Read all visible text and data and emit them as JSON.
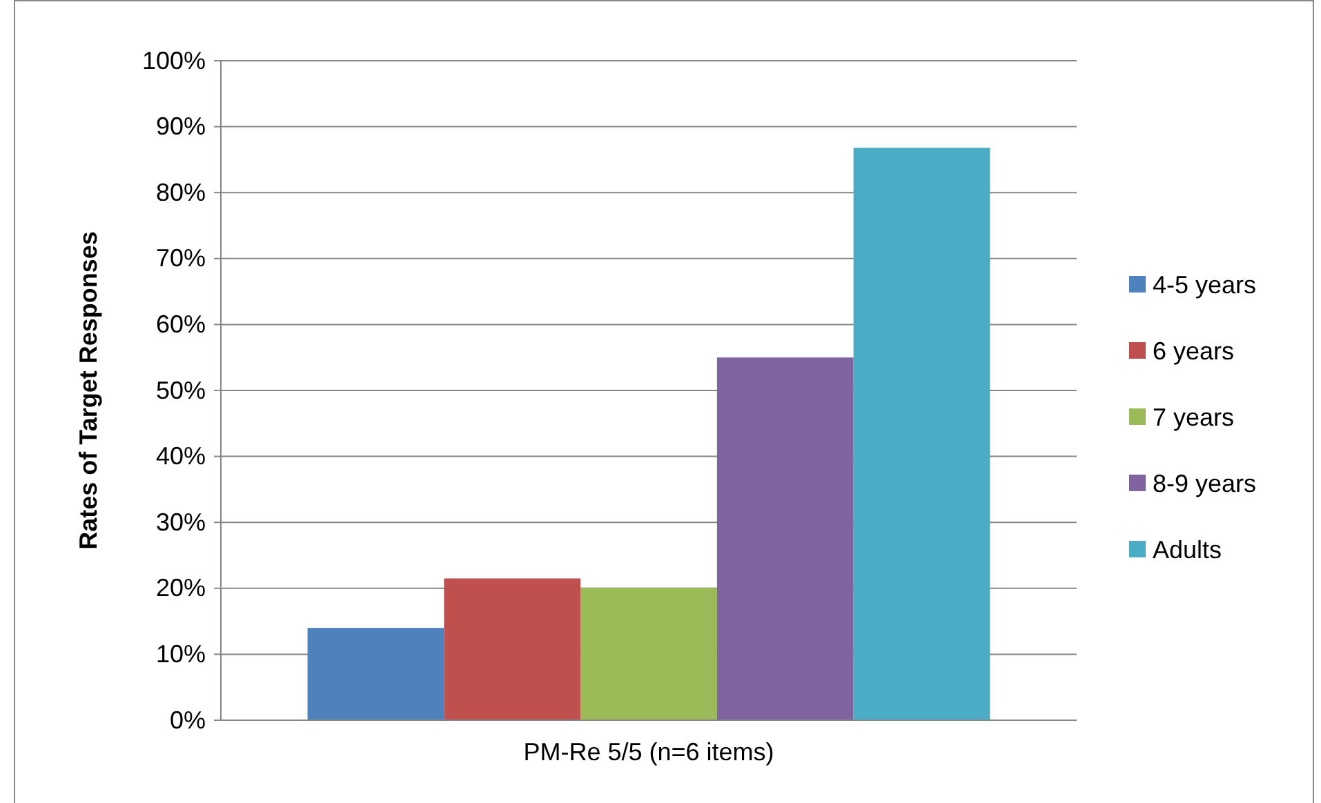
{
  "chart_data": {
    "type": "bar",
    "ylabel": "Rates of Target Responses",
    "categories": [
      "PM-Re 5/5 (n=6 items)"
    ],
    "series": [
      {
        "name": "4-5 years",
        "color": "#4f81bd",
        "values": [
          14
        ]
      },
      {
        "name": "6 years",
        "color": "#c0504d",
        "values": [
          21.5
        ]
      },
      {
        "name": "7 years",
        "color": "#9bbb59",
        "values": [
          20.1
        ]
      },
      {
        "name": "8-9 years",
        "color": "#8064a2",
        "values": [
          55
        ]
      },
      {
        "name": "Adults",
        "color": "#4bacc6",
        "values": [
          86.8
        ]
      }
    ],
    "ylim": [
      0,
      100
    ],
    "yticks": [
      {
        "value": 0,
        "label": "0%"
      },
      {
        "value": 10,
        "label": "10%"
      },
      {
        "value": 20,
        "label": "20%"
      },
      {
        "value": 30,
        "label": "30%"
      },
      {
        "value": 40,
        "label": "40%"
      },
      {
        "value": 50,
        "label": "50%"
      },
      {
        "value": 60,
        "label": "60%"
      },
      {
        "value": 70,
        "label": "70%"
      },
      {
        "value": 80,
        "label": "80%"
      },
      {
        "value": 90,
        "label": "90%"
      },
      {
        "value": 100,
        "label": "100%"
      }
    ],
    "grid": "y",
    "legend": "right"
  }
}
